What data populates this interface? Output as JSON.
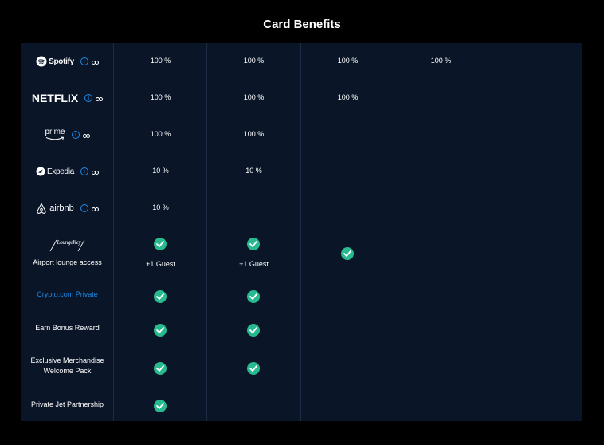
{
  "title": "Card Benefits",
  "colors": {
    "accent": "#1e88e5",
    "check": "#28b98f",
    "panel": "#0a1628",
    "background": "#000000"
  },
  "rows": {
    "spotify": {
      "brand": "Spotify",
      "values": [
        "100 %",
        "100 %",
        "100 %",
        "100 %"
      ]
    },
    "netflix": {
      "brand": "NETFLIX",
      "values": [
        "100 %",
        "100 %",
        "100 %"
      ]
    },
    "prime": {
      "brand": "prime",
      "values": [
        "100 %",
        "100 %"
      ]
    },
    "expedia": {
      "brand": "Expedia",
      "values": [
        "10 %",
        "10 %"
      ]
    },
    "airbnb": {
      "brand": "airbnb",
      "values": [
        "10 %"
      ]
    },
    "lounge": {
      "brand": "LoungeKey",
      "label": "Airport lounge access",
      "guest": "+1 Guest",
      "included": [
        true,
        true,
        true,
        false,
        false
      ]
    },
    "private": {
      "label": "Crypto.com Private",
      "included": [
        true,
        true,
        false,
        false,
        false
      ]
    },
    "bonus": {
      "label": "Earn Bonus Reward",
      "included": [
        true,
        true,
        false,
        false,
        false
      ]
    },
    "merch": {
      "label_line1": "Exclusive Merchandise",
      "label_line2": "Welcome Pack",
      "included": [
        true,
        true,
        false,
        false,
        false
      ]
    },
    "jet": {
      "label": "Private Jet Partnership",
      "included": [
        true,
        false,
        false,
        false,
        false
      ]
    }
  },
  "icons": {
    "info": "info-icon",
    "link": "link-icon",
    "check": "check-circle-icon"
  }
}
